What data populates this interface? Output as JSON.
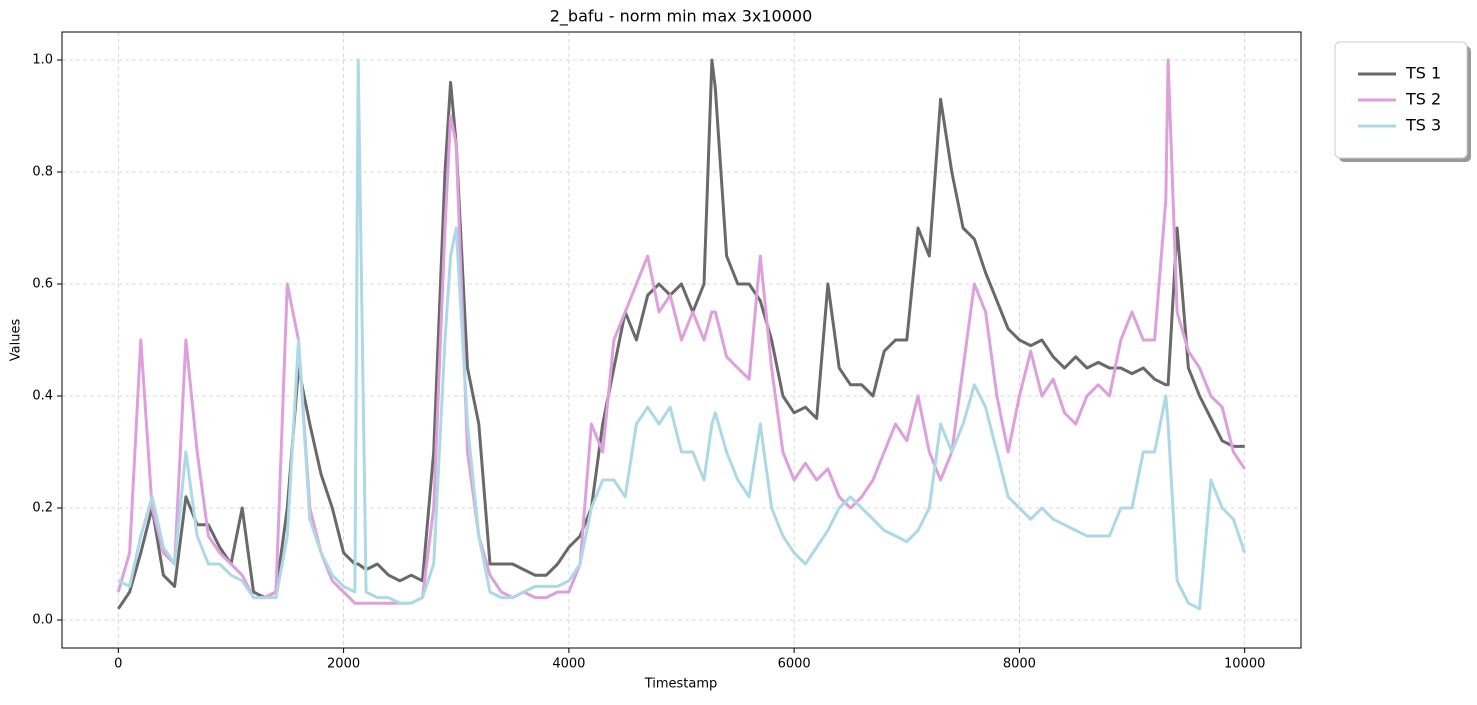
{
  "chart_data": {
    "type": "line",
    "title": "2_bafu - norm min max 3x10000",
    "xlabel": "Timestamp",
    "ylabel": "Values",
    "x": [
      0,
      100,
      200,
      300,
      400,
      500,
      600,
      700,
      800,
      900,
      1000,
      1100,
      1200,
      1300,
      1400,
      1500,
      1600,
      1700,
      1800,
      1900,
      2000,
      2100,
      2130,
      2200,
      2300,
      2400,
      2500,
      2600,
      2700,
      2800,
      2900,
      2950,
      3000,
      3100,
      3200,
      3300,
      3400,
      3500,
      3600,
      3700,
      3800,
      3900,
      4000,
      4100,
      4200,
      4300,
      4400,
      4500,
      4600,
      4700,
      4800,
      4900,
      5000,
      5100,
      5200,
      5270,
      5300,
      5400,
      5500,
      5600,
      5700,
      5800,
      5900,
      6000,
      6100,
      6200,
      6300,
      6400,
      6500,
      6600,
      6700,
      6800,
      6900,
      7000,
      7100,
      7200,
      7300,
      7400,
      7500,
      7600,
      7700,
      7800,
      7900,
      8000,
      8100,
      8200,
      8300,
      8400,
      8500,
      8600,
      8700,
      8800,
      8900,
      9000,
      9100,
      9200,
      9300,
      9320,
      9400,
      9500,
      9600,
      9700,
      9800,
      9900,
      10000
    ],
    "series": [
      {
        "name": "TS 1",
        "color": "#696969",
        "values": [
          0.02,
          0.05,
          0.12,
          0.2,
          0.08,
          0.06,
          0.22,
          0.17,
          0.17,
          0.13,
          0.1,
          0.2,
          0.05,
          0.04,
          0.05,
          0.2,
          0.45,
          0.35,
          0.26,
          0.2,
          0.12,
          0.1,
          0.1,
          0.09,
          0.1,
          0.08,
          0.07,
          0.08,
          0.07,
          0.3,
          0.8,
          0.96,
          0.85,
          0.45,
          0.35,
          0.1,
          0.1,
          0.1,
          0.09,
          0.08,
          0.08,
          0.1,
          0.13,
          0.15,
          0.2,
          0.35,
          0.45,
          0.55,
          0.5,
          0.58,
          0.6,
          0.58,
          0.6,
          0.55,
          0.6,
          1.0,
          0.95,
          0.65,
          0.6,
          0.6,
          0.57,
          0.5,
          0.4,
          0.37,
          0.38,
          0.36,
          0.6,
          0.45,
          0.42,
          0.42,
          0.4,
          0.48,
          0.5,
          0.5,
          0.7,
          0.65,
          0.93,
          0.8,
          0.7,
          0.68,
          0.62,
          0.57,
          0.52,
          0.5,
          0.49,
          0.5,
          0.47,
          0.45,
          0.47,
          0.45,
          0.46,
          0.45,
          0.45,
          0.44,
          0.45,
          0.43,
          0.42,
          0.42,
          0.7,
          0.45,
          0.4,
          0.36,
          0.32,
          0.31,
          0.31
        ]
      },
      {
        "name": "TS 2",
        "color": "#dda0dd",
        "values": [
          0.05,
          0.12,
          0.5,
          0.2,
          0.12,
          0.1,
          0.5,
          0.3,
          0.15,
          0.12,
          0.1,
          0.08,
          0.04,
          0.04,
          0.05,
          0.6,
          0.5,
          0.2,
          0.12,
          0.07,
          0.05,
          0.03,
          0.03,
          0.03,
          0.03,
          0.03,
          0.03,
          0.03,
          0.04,
          0.2,
          0.7,
          0.9,
          0.85,
          0.3,
          0.15,
          0.08,
          0.05,
          0.04,
          0.05,
          0.04,
          0.04,
          0.05,
          0.05,
          0.1,
          0.35,
          0.3,
          0.5,
          0.55,
          0.6,
          0.65,
          0.55,
          0.58,
          0.5,
          0.55,
          0.5,
          0.55,
          0.55,
          0.47,
          0.45,
          0.43,
          0.65,
          0.45,
          0.3,
          0.25,
          0.28,
          0.25,
          0.27,
          0.22,
          0.2,
          0.22,
          0.25,
          0.3,
          0.35,
          0.32,
          0.4,
          0.3,
          0.25,
          0.3,
          0.45,
          0.6,
          0.55,
          0.4,
          0.3,
          0.4,
          0.48,
          0.4,
          0.43,
          0.37,
          0.35,
          0.4,
          0.42,
          0.4,
          0.5,
          0.55,
          0.5,
          0.5,
          0.75,
          1.0,
          0.55,
          0.48,
          0.45,
          0.4,
          0.38,
          0.3,
          0.27
        ]
      },
      {
        "name": "TS 3",
        "color": "#add8e6",
        "values": [
          0.07,
          0.06,
          0.15,
          0.22,
          0.13,
          0.1,
          0.3,
          0.15,
          0.1,
          0.1,
          0.08,
          0.07,
          0.04,
          0.04,
          0.04,
          0.15,
          0.5,
          0.18,
          0.12,
          0.08,
          0.06,
          0.05,
          1.0,
          0.05,
          0.04,
          0.04,
          0.03,
          0.03,
          0.04,
          0.1,
          0.5,
          0.65,
          0.7,
          0.35,
          0.15,
          0.05,
          0.04,
          0.04,
          0.05,
          0.06,
          0.06,
          0.06,
          0.07,
          0.1,
          0.2,
          0.25,
          0.25,
          0.22,
          0.35,
          0.38,
          0.35,
          0.38,
          0.3,
          0.3,
          0.25,
          0.35,
          0.37,
          0.3,
          0.25,
          0.22,
          0.35,
          0.2,
          0.15,
          0.12,
          0.1,
          0.13,
          0.16,
          0.2,
          0.22,
          0.2,
          0.18,
          0.16,
          0.15,
          0.14,
          0.16,
          0.2,
          0.35,
          0.3,
          0.35,
          0.42,
          0.38,
          0.3,
          0.22,
          0.2,
          0.18,
          0.2,
          0.18,
          0.17,
          0.16,
          0.15,
          0.15,
          0.15,
          0.2,
          0.2,
          0.3,
          0.3,
          0.4,
          0.35,
          0.07,
          0.03,
          0.02,
          0.25,
          0.2,
          0.18,
          0.12
        ]
      }
    ],
    "xlim": [
      -500,
      10500
    ],
    "xticks": [
      0,
      2000,
      4000,
      6000,
      8000,
      10000
    ],
    "ylim": [
      -0.05,
      1.05
    ],
    "yticks": [
      {
        "value": 0,
        "label": "0.0"
      },
      0.2,
      0.4,
      0.6,
      0.8,
      {
        "value": 1,
        "label": "1.0"
      }
    ],
    "grid": true,
    "legend": "outside upper right"
  }
}
